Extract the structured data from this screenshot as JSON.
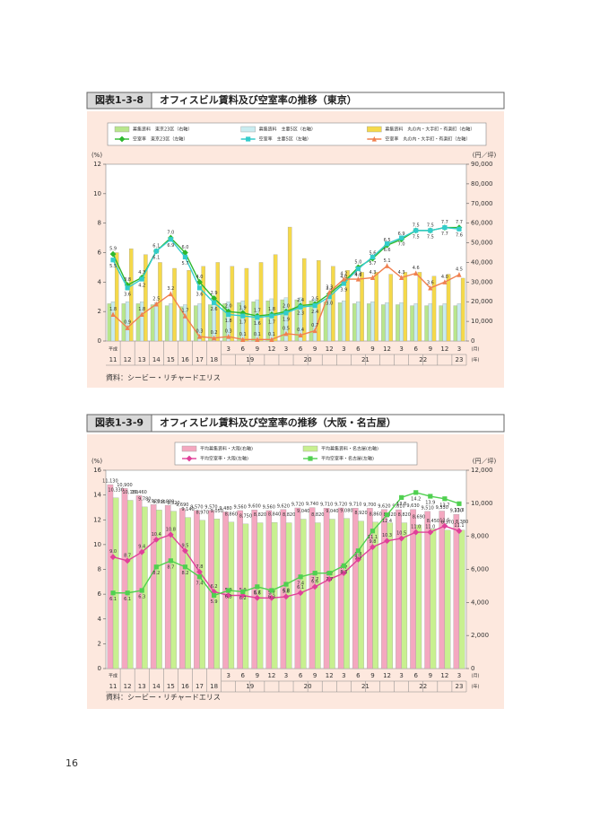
{
  "page_number": "16",
  "chart_data": [
    {
      "type": "bar",
      "figure_label": "図表1-3-8",
      "title": "オフィスビル賃料及び空室率の推移（東京）",
      "source": "資料：シービー・リチャードエリス",
      "ylabel": "(%)",
      "y2label": "(円／坪)",
      "era_label": "平成",
      "x_month_unit": "(月)",
      "x_year_unit": "(年)",
      "categories": [
        "11",
        "12",
        "13",
        "14",
        "15",
        "16",
        "17",
        "18",
        "3",
        "6",
        "9",
        "12",
        "3",
        "6",
        "9",
        "12",
        "3",
        "6",
        "9",
        "12",
        "3",
        "6",
        "9",
        "12",
        "3"
      ],
      "year_labels": [
        "19",
        "20",
        "21",
        "22",
        "23"
      ],
      "ylim": [
        0,
        12
      ],
      "yticks": [
        0,
        2,
        4,
        6,
        8,
        10,
        12
      ],
      "y2lim": [
        0,
        90000
      ],
      "y2ticks": [
        0,
        {
          "value": 10000,
          "label": "10,000"
        },
        {
          "value": 20000,
          "label": "20,000"
        },
        {
          "value": 30000,
          "label": "30,000"
        },
        {
          "value": 40000,
          "label": "40,000"
        },
        {
          "value": 50000,
          "label": "50,000"
        },
        {
          "value": 60000,
          "label": "60,000"
        },
        {
          "value": 70000,
          "label": "70,000"
        },
        {
          "value": 80000,
          "label": "80,000"
        },
        {
          "value": 90000,
          "label": "90,000"
        }
      ],
      "series": [
        {
          "name": "募集賃料　東京23区（右軸）",
          "type": "bar",
          "axis": "y2",
          "color": "#b8e68c",
          "values": [
            19000,
            19000,
            19000,
            18500,
            18000,
            17500,
            18000,
            18500,
            19000,
            19500,
            20000,
            20500,
            21000,
            21000,
            20500,
            20000,
            19500,
            19000,
            19000,
            18500,
            18500,
            18000,
            18000,
            18000,
            18000
          ]
        },
        {
          "name": "募集賃料　主要5区（右軸）",
          "type": "bar",
          "axis": "y2",
          "color": "#c8ecf0",
          "values": [
            20000,
            20000,
            20000,
            19500,
            19000,
            18500,
            19000,
            19500,
            20000,
            20500,
            21000,
            21500,
            22000,
            22000,
            21500,
            21000,
            20500,
            20000,
            20000,
            19500,
            19500,
            19000,
            19000,
            19000,
            19000
          ]
        },
        {
          "name": "募集賃料　丸の内・大手町・有楽町（右軸）",
          "type": "bar",
          "axis": "y2",
          "color": "#f5d94a",
          "values": [
            45000,
            47000,
            44000,
            40000,
            37000,
            36000,
            38000,
            40000,
            38000,
            37000,
            40000,
            44000,
            58000,
            42000,
            41000,
            38000,
            36000,
            35000,
            35000,
            34000,
            35000,
            35000,
            33000,
            34000,
            32000
          ]
        },
        {
          "name": "空室率　東京23区（左軸）",
          "type": "line",
          "marker": "diamond",
          "color": "#2db82d",
          "values": [
            5.9,
            3.8,
            4.3,
            6.1,
            7.0,
            6.0,
            4.0,
            2.9,
            2.0,
            1.9,
            1.7,
            1.8,
            2.0,
            2.4,
            2.5,
            3.2,
            4.0,
            5.0,
            5.6,
            6.5,
            6.9,
            7.5,
            7.5,
            7.7,
            7.7
          ],
          "value_labels": [
            "5.9",
            "3.8",
            "4.3",
            "6.1",
            "7.0",
            "6.0",
            "4.0",
            "2.9",
            "2.0",
            "1.9",
            "1.7",
            "1.8",
            "2.0",
            "2.4",
            "2.5",
            "3.2",
            "4.0",
            "5.0",
            "5.6",
            "6.5",
            "6.9",
            "7.5",
            "7.5",
            "7.7",
            "7.7"
          ]
        },
        {
          "name": "空室率　主要5区（左軸）",
          "type": "line",
          "marker": "square",
          "color": "#33cccc",
          "values": [
            5.5,
            3.6,
            4.2,
            6.1,
            6.9,
            5.7,
            3.6,
            2.6,
            1.8,
            1.7,
            1.6,
            1.7,
            1.9,
            2.3,
            2.4,
            3.0,
            3.9,
            4.9,
            5.7,
            6.6,
            7.0,
            7.5,
            7.5,
            7.7,
            7.6
          ],
          "value_labels": [
            "5.5",
            "3.6",
            "4.2",
            "6.1",
            "6.9",
            "5.7",
            "3.6",
            "2.6",
            "1.8",
            "1.7",
            "1.6",
            "1.7",
            "1.9",
            "2.3",
            "2.4",
            "3.0",
            "3.9",
            "4.9",
            "5.7",
            "6.6",
            "7.0",
            "7.5",
            "7.5",
            "7.7",
            "7.6"
          ]
        },
        {
          "name": "空室率　丸の内・大手町・有楽町（左軸）",
          "type": "line",
          "marker": "triangle",
          "color": "#f08050",
          "values": [
            1.8,
            0.9,
            1.8,
            2.5,
            3.2,
            1.7,
            0.3,
            0.2,
            0.3,
            0.1,
            0.1,
            0.1,
            0.5,
            0.4,
            0.7,
            3.3,
            4.2,
            4.2,
            4.3,
            5.1,
            4.3,
            4.6,
            3.6,
            4.0,
            4.5
          ],
          "value_labels": [
            "1.8",
            "0.9",
            "1.8",
            "2.5",
            "3.2",
            "1.7",
            "0.3",
            "0.2",
            "0.3",
            "0.1",
            "0.1",
            "0.1",
            "0.5",
            "0.4",
            "0.7",
            "3.3",
            "4.2",
            "4.2",
            "4.3",
            "5.1",
            "4.3",
            "4.6",
            "3.6",
            "4.0",
            "4.5"
          ]
        }
      ]
    },
    {
      "type": "bar",
      "figure_label": "図表1-3-9",
      "title": "オフィスビル賃料及び空室率の推移（大阪・名古屋）",
      "source": "資料：シービー・リチャードエリス",
      "ylabel": "(%)",
      "y2label": "(円／坪)",
      "era_label": "平成",
      "x_month_unit": "(月)",
      "x_year_unit": "(年)",
      "categories": [
        "11",
        "12",
        "13",
        "14",
        "15",
        "16",
        "17",
        "18",
        "3",
        "6",
        "9",
        "12",
        "3",
        "6",
        "9",
        "12",
        "3",
        "6",
        "9",
        "12",
        "3",
        "6",
        "9",
        "12",
        "3"
      ],
      "year_labels": [
        "19",
        "20",
        "21",
        "22",
        "23"
      ],
      "ylim": [
        0,
        16
      ],
      "yticks": [
        0,
        2,
        4,
        6,
        8,
        10,
        12,
        14,
        16
      ],
      "y2lim": [
        0,
        12000
      ],
      "y2ticks": [
        0,
        {
          "value": 2000,
          "label": "2,000"
        },
        {
          "value": 4000,
          "label": "4,000"
        },
        {
          "value": 6000,
          "label": "6,000"
        },
        {
          "value": 8000,
          "label": "8,000"
        },
        {
          "value": 10000,
          "label": "10,000"
        },
        {
          "value": 12000,
          "label": "12,000"
        }
      ],
      "series": [
        {
          "name": "平均募集賃料・大阪(右軸)",
          "type": "bar",
          "axis": "y2",
          "color": "#f4a8c0",
          "values": [
            11130,
            10900,
            10460,
            9920,
            9880,
            9690,
            9570,
            9570,
            9480,
            9560,
            9600,
            9560,
            9620,
            9720,
            9740,
            9710,
            9720,
            9710,
            9700,
            9620,
            9610,
            9630,
            9510,
            9530,
            9330
          ],
          "value_labels": [
            "11,130",
            "10,900",
            "10,460",
            "9,920",
            "9,880",
            "9,690",
            "9,570",
            "9,570",
            "9,480",
            "9,560",
            "9,600",
            "9,560",
            "9,620",
            "9,720",
            "9,740",
            "9,710",
            "9,720",
            "9,710",
            "9,700",
            "9,620",
            "9,610",
            "9,630",
            "9,510",
            "9,530",
            "9,330"
          ]
        },
        {
          "name": "平均募集賃料・名古屋(右軸)",
          "type": "bar",
          "axis": "y2",
          "color": "#c8f090",
          "values": [
            10330,
            10180,
            9780,
            9590,
            9520,
            9140,
            8970,
            9050,
            8860,
            8750,
            8820,
            8840,
            8820,
            9040,
            8820,
            9040,
            9080,
            8920,
            8860,
            8820,
            8820,
            8690,
            8450,
            8370,
            8380
          ],
          "value_labels": [
            "10,330",
            "10,180",
            "9,780",
            "9,590",
            "9,520",
            "9,140",
            "8,970",
            "9,050",
            "8,860",
            "8,750",
            "8,820",
            "8,840",
            "8,820",
            "9,040",
            "8,820",
            "9,040",
            "9,080",
            "8,920",
            "8,860",
            "8,820",
            "8,820",
            "8,690",
            "8,450",
            "8,370",
            "8,380"
          ]
        },
        {
          "name": "平均空室率・大阪(左軸)",
          "type": "line",
          "marker": "diamond",
          "color": "#e0409a",
          "values": [
            9.0,
            8.7,
            9.4,
            10.4,
            10.8,
            9.5,
            7.8,
            6.2,
            5.9,
            5.9,
            5.7,
            5.7,
            5.8,
            6.1,
            6.6,
            7.2,
            7.7,
            8.8,
            9.8,
            10.3,
            10.5,
            11.0,
            11.0,
            11.5,
            11.1
          ],
          "value_labels": [
            "9.0",
            "8.7",
            "9.4",
            "10.4",
            "10.8",
            "9.5",
            "7.8",
            "6.2",
            "5.9",
            "5.9",
            "5.7",
            "5.7",
            "5.8",
            "6.1",
            "6.6",
            "7.2",
            "7.7",
            "8.8",
            "9.8",
            "10.3",
            "10.5",
            "11.0",
            "11.0",
            "11.5",
            "11.1"
          ]
        },
        {
          "name": "平均空室率・名古屋(左軸)",
          "type": "line",
          "marker": "square",
          "color": "#50d050",
          "values": [
            6.1,
            6.1,
            6.3,
            8.2,
            8.7,
            8.2,
            7.4,
            5.9,
            6.3,
            6.2,
            6.6,
            6.3,
            6.8,
            7.4,
            7.7,
            7.7,
            8.3,
            9.5,
            11.1,
            12.4,
            13.8,
            14.2,
            13.9,
            13.7,
            13.3
          ],
          "value_labels": [
            "6.1",
            "6.1",
            "6.3",
            "8.2",
            "8.7",
            "8.2",
            "7.4",
            "5.9",
            "6.3",
            "6.2",
            "6.6",
            "6.3",
            "6.8",
            "7.4",
            "7.7",
            "7.7",
            "8.3",
            "9.5",
            "11.1",
            "12.4",
            "13.8",
            "14.2",
            "13.9",
            "13.7",
            "13.3"
          ]
        }
      ]
    }
  ]
}
